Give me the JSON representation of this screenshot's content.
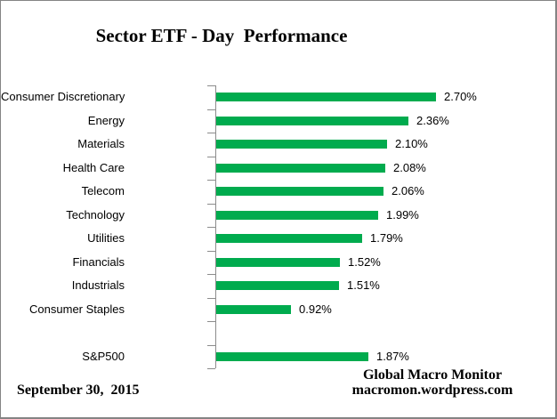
{
  "title": "Sector ETF - Day  Performance",
  "footer": {
    "date": "September 30,  2015",
    "source_line1": "Global Macro Monitor",
    "source_line2": "macromon.wordpress.com"
  },
  "colors": {
    "bar": "#00AB4E",
    "axis": "#8C8C8C",
    "frame_border": "#848484",
    "text": "#000000"
  },
  "chart_data": {
    "type": "bar",
    "orientation": "horizontal",
    "title": "Sector ETF - Day  Performance",
    "categories": [
      "Consumer Discretionary",
      "Energy",
      "Materials",
      "Health Care",
      "Telecom",
      "Technology",
      "Utilities",
      "Financials",
      "Industrials",
      "Consumer Staples",
      "",
      "S&P500"
    ],
    "values": [
      2.7,
      2.36,
      2.1,
      2.08,
      2.06,
      1.99,
      1.79,
      1.52,
      1.51,
      0.92,
      null,
      1.87
    ],
    "value_labels": [
      "2.70%",
      "2.36%",
      "2.10%",
      "2.08%",
      "2.06%",
      "1.99%",
      "1.79%",
      "1.52%",
      "1.51%",
      "0.92%",
      "",
      "1.87%"
    ],
    "xlim": [
      0,
      3
    ],
    "value_suffix": "%",
    "grid": false,
    "legend": "none",
    "bar_color": "#00AB4E",
    "axis_color": "#8C8C8C"
  }
}
